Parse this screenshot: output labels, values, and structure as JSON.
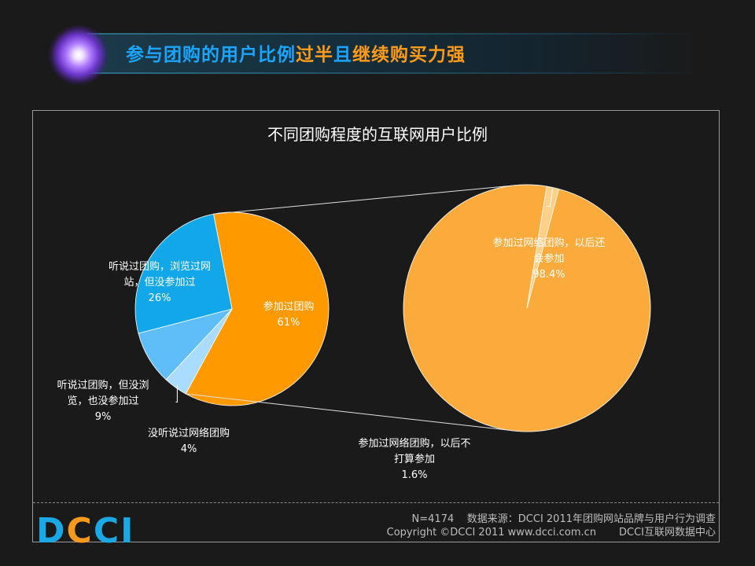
{
  "header": {
    "part1": "参与团购的用户比例",
    "part2": "过半",
    "part3": "且",
    "part4": "继续购买力强",
    "colors": {
      "blue": "#1ba5ff",
      "orange": "#ff9a1a"
    }
  },
  "chart_data": {
    "type": "pie",
    "title": "不同团购程度的互联网用户比例",
    "main_pie": {
      "slices": [
        {
          "label_lines": [
            "参加过团购"
          ],
          "pct_text": "61%",
          "value": 61,
          "color": "#ff9900"
        },
        {
          "label_lines": [
            "没听说过网络团购"
          ],
          "pct_text": "4%",
          "value": 4,
          "color": "#a9dcff"
        },
        {
          "label_lines": [
            "听说过团购，但没浏",
            "览，也没参加过"
          ],
          "pct_text": "9%",
          "value": 9,
          "color": "#5fbdf7"
        },
        {
          "label_lines": [
            "听说过团购，浏览过网",
            "站，但没参加过"
          ],
          "pct_text": "26%",
          "value": 26,
          "color": "#12a7e8"
        }
      ]
    },
    "breakdown_pie": {
      "of": "参加过团购",
      "slices": [
        {
          "label_lines": [
            "参加过网络团购，以后还",
            "会参加"
          ],
          "pct_text": "98.4%",
          "value": 98.4,
          "color": "#fbab3b"
        },
        {
          "label_lines": [
            "参加过网络团购，以后不",
            "打算参加"
          ],
          "pct_text": "1.6%",
          "value": 1.6,
          "color": "#ffd08a"
        }
      ]
    }
  },
  "footer": {
    "logo_d": "D",
    "logo_c1": "C",
    "logo_c2": "C",
    "logo_i": "I",
    "sample": "N=4174",
    "source": "数据来源：DCCI 2011年团购网站品牌与用户行为调查",
    "copyright": "Copyright ©DCCI 2011 www.dcci.com.cn",
    "center": "DCCI互联网数据中心"
  }
}
